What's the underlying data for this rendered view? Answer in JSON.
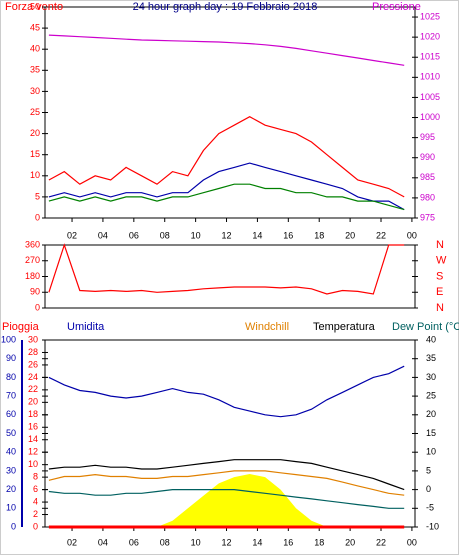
{
  "chart_data": [
    {
      "type": "line",
      "title": "24 hour graph day : 19 Febbraio 2018",
      "ylabel": "Forza vento",
      "y2label": "Pressione",
      "x": [
        0.5,
        1.5,
        2.5,
        3.5,
        4.5,
        5.5,
        6.5,
        7.5,
        8.5,
        9.5,
        10.5,
        11.5,
        12.5,
        13.5,
        14.5,
        15.5,
        16.5,
        17.5,
        18.5,
        19.5,
        20.5,
        21.5,
        22.5,
        23.5
      ],
      "xlim": [
        0.25,
        24.2
      ],
      "xticks": [
        {
          "value": 2,
          "label": "02"
        },
        {
          "value": 4,
          "label": "04"
        },
        {
          "value": 6,
          "label": "06"
        },
        {
          "value": 8,
          "label": "08"
        },
        10,
        12,
        14,
        16,
        18,
        20,
        22,
        {
          "value": 24,
          "label": "00"
        }
      ],
      "ylim": [
        0,
        50
      ],
      "yticks": [
        0,
        5,
        10,
        15,
        20,
        25,
        30,
        35,
        40,
        45,
        50
      ],
      "y2lim": [
        975,
        1027.5
      ],
      "y2ticks": [
        975,
        980,
        985,
        990,
        995,
        1000,
        1005,
        1010,
        1015,
        1020,
        1025
      ],
      "series": [
        {
          "color": "#ff0000",
          "values": [
            9,
            11,
            8,
            10,
            9,
            12,
            10,
            8,
            11,
            10,
            16,
            20,
            22,
            24,
            22,
            21,
            20,
            18,
            15,
            12,
            9,
            8,
            7,
            5
          ]
        },
        {
          "color": "#0000aa",
          "values": [
            5,
            6,
            5,
            6,
            5,
            6,
            6,
            5,
            6,
            6,
            9,
            11,
            12,
            13,
            12,
            11,
            10,
            9,
            8,
            7,
            5,
            4,
            4,
            2
          ]
        },
        {
          "color": "#008000",
          "values": [
            4,
            5,
            4,
            5,
            4,
            5,
            5,
            4,
            5,
            5,
            6,
            7,
            8,
            8,
            7,
            7,
            6,
            6,
            5,
            5,
            4,
            4,
            3,
            2
          ]
        },
        {
          "color": "#cc00cc",
          "axis": "y2",
          "values": [
            1020.5,
            1020.3,
            1020.1,
            1019.9,
            1019.7,
            1019.5,
            1019.3,
            1019.2,
            1019.1,
            1019,
            1018.9,
            1018.8,
            1018.6,
            1018.4,
            1018.1,
            1017.7,
            1017.2,
            1016.6,
            1016,
            1015.4,
            1014.8,
            1014.2,
            1013.6,
            1013
          ]
        }
      ]
    },
    {
      "type": "line",
      "x": [
        0.5,
        1.5,
        2.5,
        3.5,
        4.5,
        5.5,
        6.5,
        7.5,
        8.5,
        9.5,
        10.5,
        11.5,
        12.5,
        13.5,
        14.5,
        15.5,
        16.5,
        17.5,
        18.5,
        19.5,
        20.5,
        21.5,
        22.5,
        23.5
      ],
      "xlim": [
        0.25,
        24.2
      ],
      "ylim": [
        0,
        360
      ],
      "yticks": [
        0,
        90,
        180,
        270,
        360
      ],
      "y2lim": [
        0,
        360
      ],
      "y2ticks": [
        {
          "value": 360,
          "label": "N"
        },
        {
          "value": 270,
          "label": "W"
        },
        {
          "value": 180,
          "label": "S"
        },
        {
          "value": 90,
          "label": "E"
        },
        {
          "value": 0,
          "label": "N"
        }
      ],
      "series": [
        {
          "color": "#ff0000",
          "values": [
            90,
            360,
            100,
            95,
            100,
            95,
            100,
            90,
            95,
            100,
            110,
            115,
            120,
            120,
            120,
            115,
            120,
            110,
            80,
            100,
            95,
            80,
            360,
            360
          ]
        }
      ]
    },
    {
      "type": "line",
      "x": [
        0.5,
        1.5,
        2.5,
        3.5,
        4.5,
        5.5,
        6.5,
        7.5,
        8.5,
        9.5,
        10.5,
        11.5,
        12.5,
        13.5,
        14.5,
        15.5,
        16.5,
        17.5,
        18.5,
        19.5,
        20.5,
        21.5,
        22.5,
        23.5
      ],
      "xlim": [
        0.25,
        24.2
      ],
      "xticks": [
        {
          "value": 2,
          "label": "02"
        },
        {
          "value": 4,
          "label": "04"
        },
        {
          "value": 6,
          "label": "06"
        },
        {
          "value": 8,
          "label": "08"
        },
        10,
        12,
        14,
        16,
        18,
        20,
        22,
        {
          "value": 24,
          "label": "00"
        }
      ],
      "ylim": [
        0,
        30
      ],
      "yticks": [
        0,
        2,
        4,
        6,
        8,
        10,
        12,
        14,
        16,
        18,
        20,
        22,
        24,
        26,
        28,
        30
      ],
      "y3lim": [
        0,
        100
      ],
      "y3ticks": [
        0,
        10,
        20,
        30,
        40,
        50,
        60,
        70,
        80,
        90,
        100
      ],
      "y2lim": [
        -10,
        40
      ],
      "y2ticks": [
        -10,
        -5,
        0,
        5,
        10,
        15,
        20,
        25,
        30,
        35,
        40
      ],
      "series": [
        {
          "color": "#ffff00",
          "area": true,
          "values": [
            0,
            0,
            0,
            0,
            0,
            0,
            0,
            0,
            1,
            3,
            5,
            7,
            8,
            8.5,
            8,
            6,
            3,
            1,
            0,
            0,
            0,
            0,
            0,
            0
          ]
        },
        {
          "name": "Pioggia",
          "color": "#ff0000",
          "values": [
            0,
            0,
            0,
            0,
            0,
            0,
            0,
            0,
            0,
            0,
            0,
            0,
            0,
            0,
            0,
            0,
            0,
            0,
            0,
            0,
            0,
            0,
            0,
            0
          ]
        },
        {
          "name": "Umidita",
          "color": "#0000aa",
          "axis": "y3",
          "values": [
            80,
            76,
            73,
            72,
            70,
            69,
            70,
            72,
            74,
            72,
            71,
            68,
            64,
            62,
            60,
            59,
            60,
            63,
            68,
            72,
            76,
            80,
            82,
            86
          ]
        },
        {
          "name": "Windchill",
          "color": "#e08000",
          "axis": "y2",
          "values": [
            2.5,
            3.5,
            3.5,
            4,
            3.5,
            3.5,
            3,
            3,
            3.5,
            3.5,
            4,
            4.5,
            5,
            5,
            5,
            4.5,
            4,
            3.5,
            3,
            2,
            1,
            0,
            -1,
            -1.5
          ]
        },
        {
          "name": "Temperatura",
          "color": "#000000",
          "axis": "y2",
          "values": [
            5.5,
            6,
            6,
            6.5,
            6,
            6,
            5.5,
            5.5,
            6,
            6.5,
            7,
            7.5,
            8,
            8,
            8,
            8,
            7.5,
            7,
            6,
            5,
            4,
            3,
            1.5,
            0
          ]
        },
        {
          "name": "Dew Point (°C",
          "color": "#006060",
          "axis": "y2",
          "values": [
            -0.5,
            -1,
            -1,
            -1.5,
            -1.5,
            -1,
            -1,
            -0.5,
            0,
            0,
            0,
            0,
            0,
            -0.5,
            -1,
            -1.5,
            -2,
            -2.5,
            -3,
            -3.5,
            -4,
            -4.5,
            -5,
            -5
          ]
        }
      ]
    }
  ]
}
